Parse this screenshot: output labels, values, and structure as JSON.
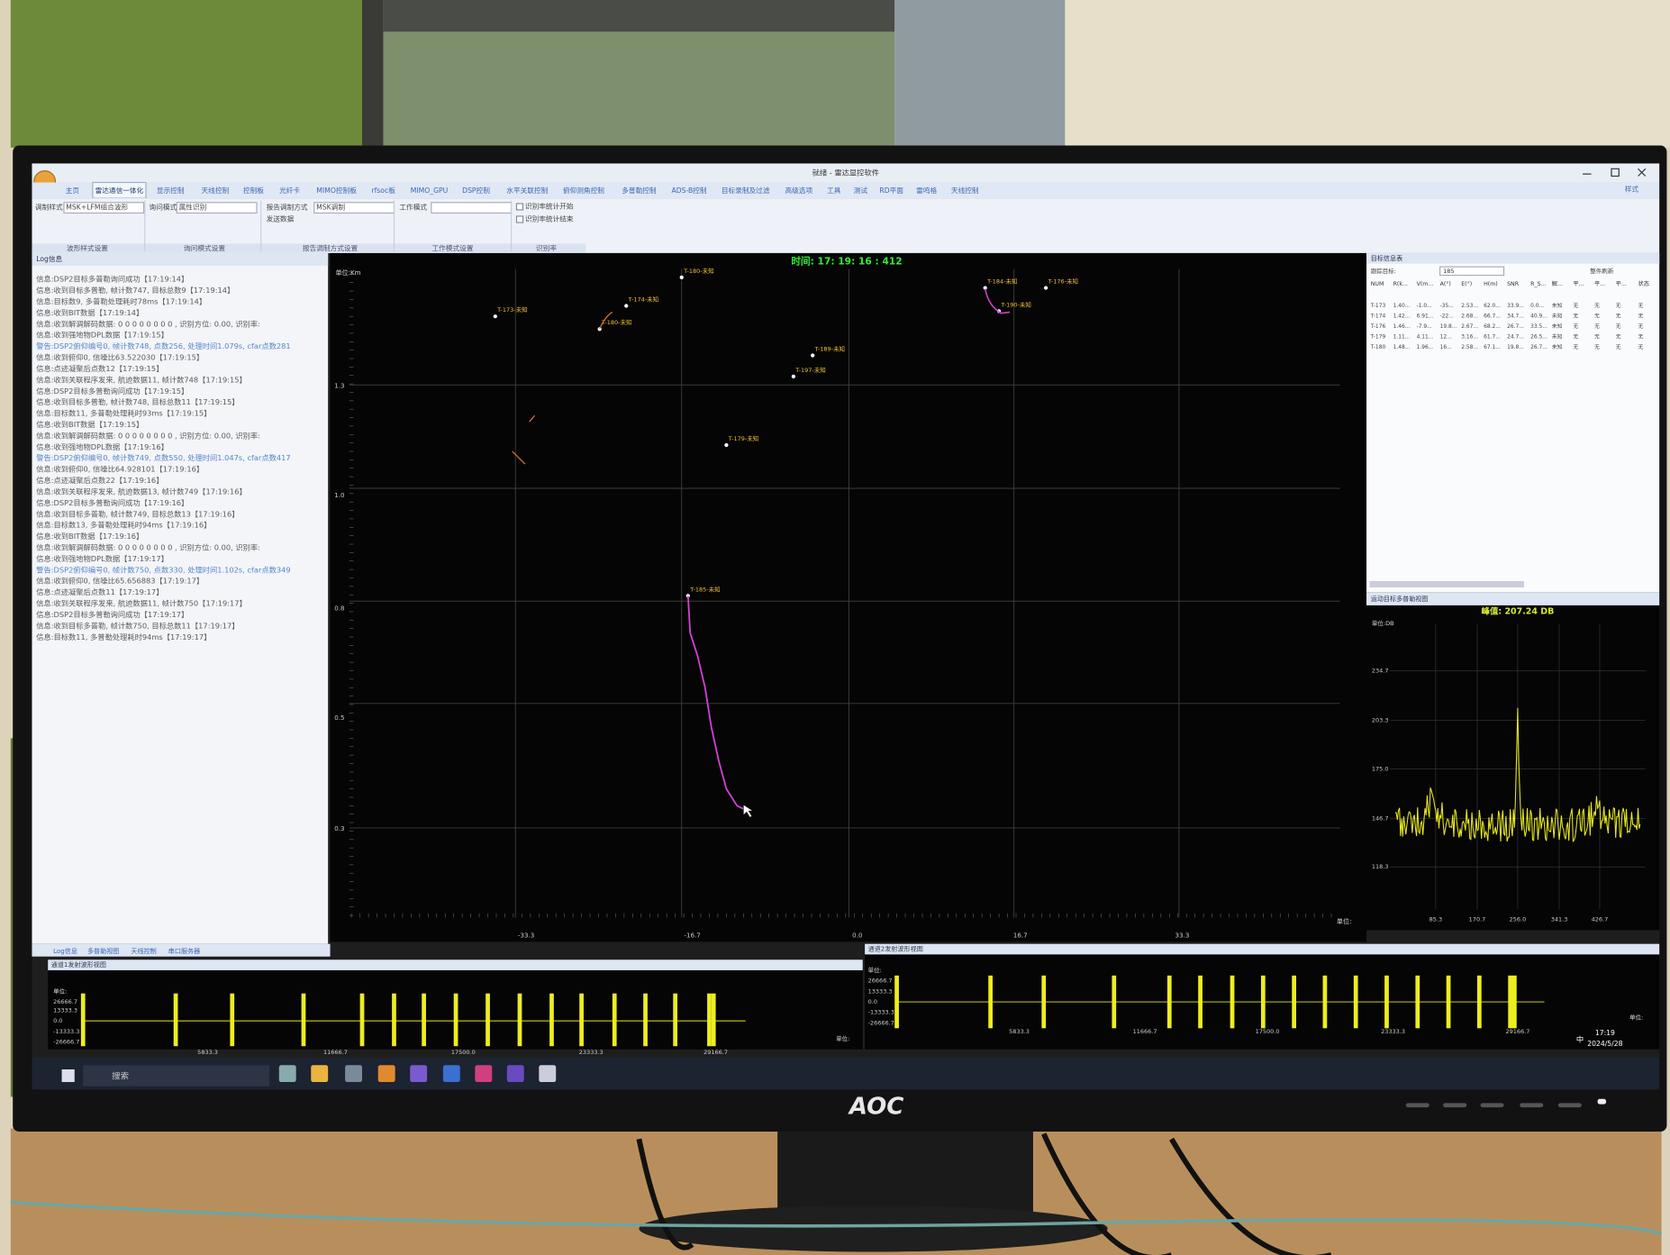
{
  "window": {
    "title": "就绪 - 雷达显控软件",
    "style_menu": "样式",
    "tabs": [
      "主页",
      "雷达通信一体化",
      "显示控制",
      "天线控制",
      "控制板",
      "光纤卡",
      "MIMO控制板",
      "rfsoc板",
      "MIMO_GPU",
      "DSP控制",
      "水平关联控制",
      "俯仰测角控制",
      "多普勒控制",
      "ADS-B控制",
      "目标录制及过滤",
      "高级选项",
      "工具",
      "测试",
      "RD平面",
      "雷鸣格",
      "天线控制"
    ]
  },
  "ribbon": {
    "fields": [
      "调制样式",
      "MSK+LFM组合波形",
      "询问模式",
      "属性识别",
      "报告调制方式",
      "MSK调制",
      "工作模式",
      "识别率统计开始",
      "识别率统计结束",
      "发送数据"
    ],
    "groups": [
      "波形样式设置",
      "询问模式设置",
      "报告调制方式设置",
      "工作模式设置",
      "识别率"
    ]
  },
  "log_panel": {
    "title": "Log信息",
    "lines": [
      "信息:DSP2目标多普勒询问成功【17:19:14】",
      "信息:收到目标多普勒, 帧计数747, 目标总数9【17:19:14】",
      "信息:目标数9, 多普勒处理耗时78ms【17:19:14】",
      "信息:收到BIT数据【17:19:14】",
      "信息:收到解调解码数据: 0 0 0 0 0 0 0 0 , 识别方位: 0.00, 识别率:",
      "信息:收到强地物DPL数据【17:19:15】",
      "警告:DSP2俯仰编号0, 帧计数748, 点数256, 处理时间1.079s, cfar点数281",
      "信息:收到俯仰0, 信噪比63.522030【17:19:15】",
      "信息:点迹凝聚后点数12【17:19:15】",
      "信息:收到关联程序发来, 航迹数据11, 帧计数748【17:19:15】",
      "信息:DSP2目标多普勒询问成功【17:19:15】",
      "信息:收到目标多普勒, 帧计数748, 目标总数11【17:19:15】",
      "信息:目标数11, 多普勒处理耗时93ms【17:19:15】",
      "信息:收到BIT数据【17:19:15】",
      "信息:收到解调解码数据: 0 0 0 0 0 0 0 0 , 识别方位: 0.00, 识别率:",
      "信息:收到强地物DPL数据【17:19:16】",
      "警告:DSP2俯仰编号0, 帧计数749, 点数550, 处理时间1.047s, cfar点数417",
      "信息:收到俯仰0, 信噪比64.928101【17:19:16】",
      "信息:点迹凝聚后点数22【17:19:16】",
      "信息:收到关联程序发来, 航迹数据13, 帧计数749【17:19:16】",
      "信息:DSP2目标多普勒询问成功【17:19:16】",
      "信息:收到目标多普勒, 帧计数749, 目标总数13【17:19:16】",
      "信息:目标数13, 多普勒处理耗时94ms【17:19:16】",
      "信息:收到BIT数据【17:19:16】",
      "信息:收到解调解码数据: 0 0 0 0 0 0 0 0 , 识别方位: 0.00, 识别率:",
      "信息:收到强地物DPL数据【17:19:17】",
      "警告:DSP2俯仰编号0, 帧计数750, 点数330, 处理时间1.102s, cfar点数349",
      "信息:收到俯仰0, 信噪比65.656883【17:19:17】",
      "信息:点迹凝聚后点数11【17:19:17】",
      "信息:收到关联程序发来, 航迹数据11, 帧计数750【17:19:17】",
      "信息:DSP2目标多普勒询问成功【17:19:17】",
      "信息:收到目标多普勒, 帧计数750, 目标总数11【17:19:17】",
      "信息:目标数11, 多普勒处理耗时94ms【17:19:17】"
    ]
  },
  "map": {
    "time": "时间: 17: 19: 16 : 412",
    "unit_y": "单位:Km",
    "unit_x": "单位:",
    "yticks": [
      "1.3",
      "1.0",
      "0.8",
      "0.5",
      "0.3"
    ],
    "xticks": [
      "-33.3",
      "-16.7",
      "0.0",
      "16.7",
      "33.3"
    ],
    "tracks": [
      "T-173-未知",
      "T-174-未知",
      "T-180-未知",
      "T-180-未知",
      "T-184-未知",
      "T-176-未知",
      "T-190-未知",
      "T-189-未知",
      "T-197-未知",
      "T-179-未知",
      "T-185-未知"
    ]
  },
  "target_table": {
    "title": "目标信息表",
    "track_label": "跟踪目标:",
    "track_value": "185",
    "refresh": "整件刷新",
    "columns": [
      "NUM",
      "R(k...",
      "V(m...",
      "A(°)",
      "E(°)",
      "H(m)",
      "SNR",
      "R_S...",
      "解...",
      "平...",
      "平...",
      "平...",
      "状态"
    ],
    "rows": [
      [
        "T-173",
        "1.40...",
        "-1.0...",
        "-35...",
        "2.53...",
        "62.0...",
        "33.9...",
        "0.0...",
        "未知",
        "无",
        "无",
        "无",
        "无"
      ],
      [
        "T-174",
        "1.42...",
        "6.91...",
        "-22...",
        "2.68...",
        "66.7...",
        "34.7...",
        "40.9...",
        "未知",
        "无",
        "无",
        "无",
        "无"
      ],
      [
        "T-176",
        "1.46...",
        "-7.9...",
        "19.8...",
        "2.67...",
        "68.2...",
        "26.7...",
        "33.5...",
        "未知",
        "无",
        "无",
        "无",
        "无"
      ],
      [
        "T-179",
        "1.11...",
        "4.11...",
        "12...",
        "3.16...",
        "61.7...",
        "24.7...",
        "26.5...",
        "未知",
        "无",
        "无",
        "无",
        "无"
      ],
      [
        "T-180",
        "1.48...",
        "1.96...",
        "16...",
        "2.58...",
        "67.1...",
        "19.8...",
        "26.7...",
        "未知",
        "无",
        "无",
        "无",
        "无"
      ]
    ]
  },
  "spectrum": {
    "title": "运动目标多普勒视图",
    "peak": "峰值: 207.24 DB",
    "unit": "单位:DB",
    "yticks": [
      "234.7",
      "203.3",
      "175.0",
      "146.7",
      "118.3"
    ],
    "xticks": [
      "85.3",
      "170.7",
      "256.0",
      "341.3",
      "426.7"
    ]
  },
  "bottom_tabs": [
    "Log信息",
    "多普勒视图",
    "天线控制",
    "串口服务器"
  ],
  "waveform_views": [
    {
      "title": "通道1发射波形视图",
      "unit": "单位:",
      "yticks": [
        "26666.7",
        "13333.3",
        "0.0",
        "-13333.3",
        "-26666.7"
      ],
      "xticks": [
        "5833.3",
        "11666.7",
        "17500.0",
        "23333.3",
        "29166.7"
      ],
      "unit_x": "单位:"
    },
    {
      "title": "通道2发射波形视图",
      "unit": "单位:",
      "yticks": [
        "26666.7",
        "13333.3",
        "0.0",
        "-13333.3",
        "-26666.7"
      ],
      "xticks": [
        "5833.3",
        "11666.7",
        "17500.0",
        "23333.3",
        "29166.7"
      ],
      "unit_x": "单位:"
    }
  ],
  "taskbar": {
    "search": "搜索",
    "ime": "中",
    "time": "17:19",
    "date": "2024/5/28"
  },
  "monitor_brand": "AOC"
}
